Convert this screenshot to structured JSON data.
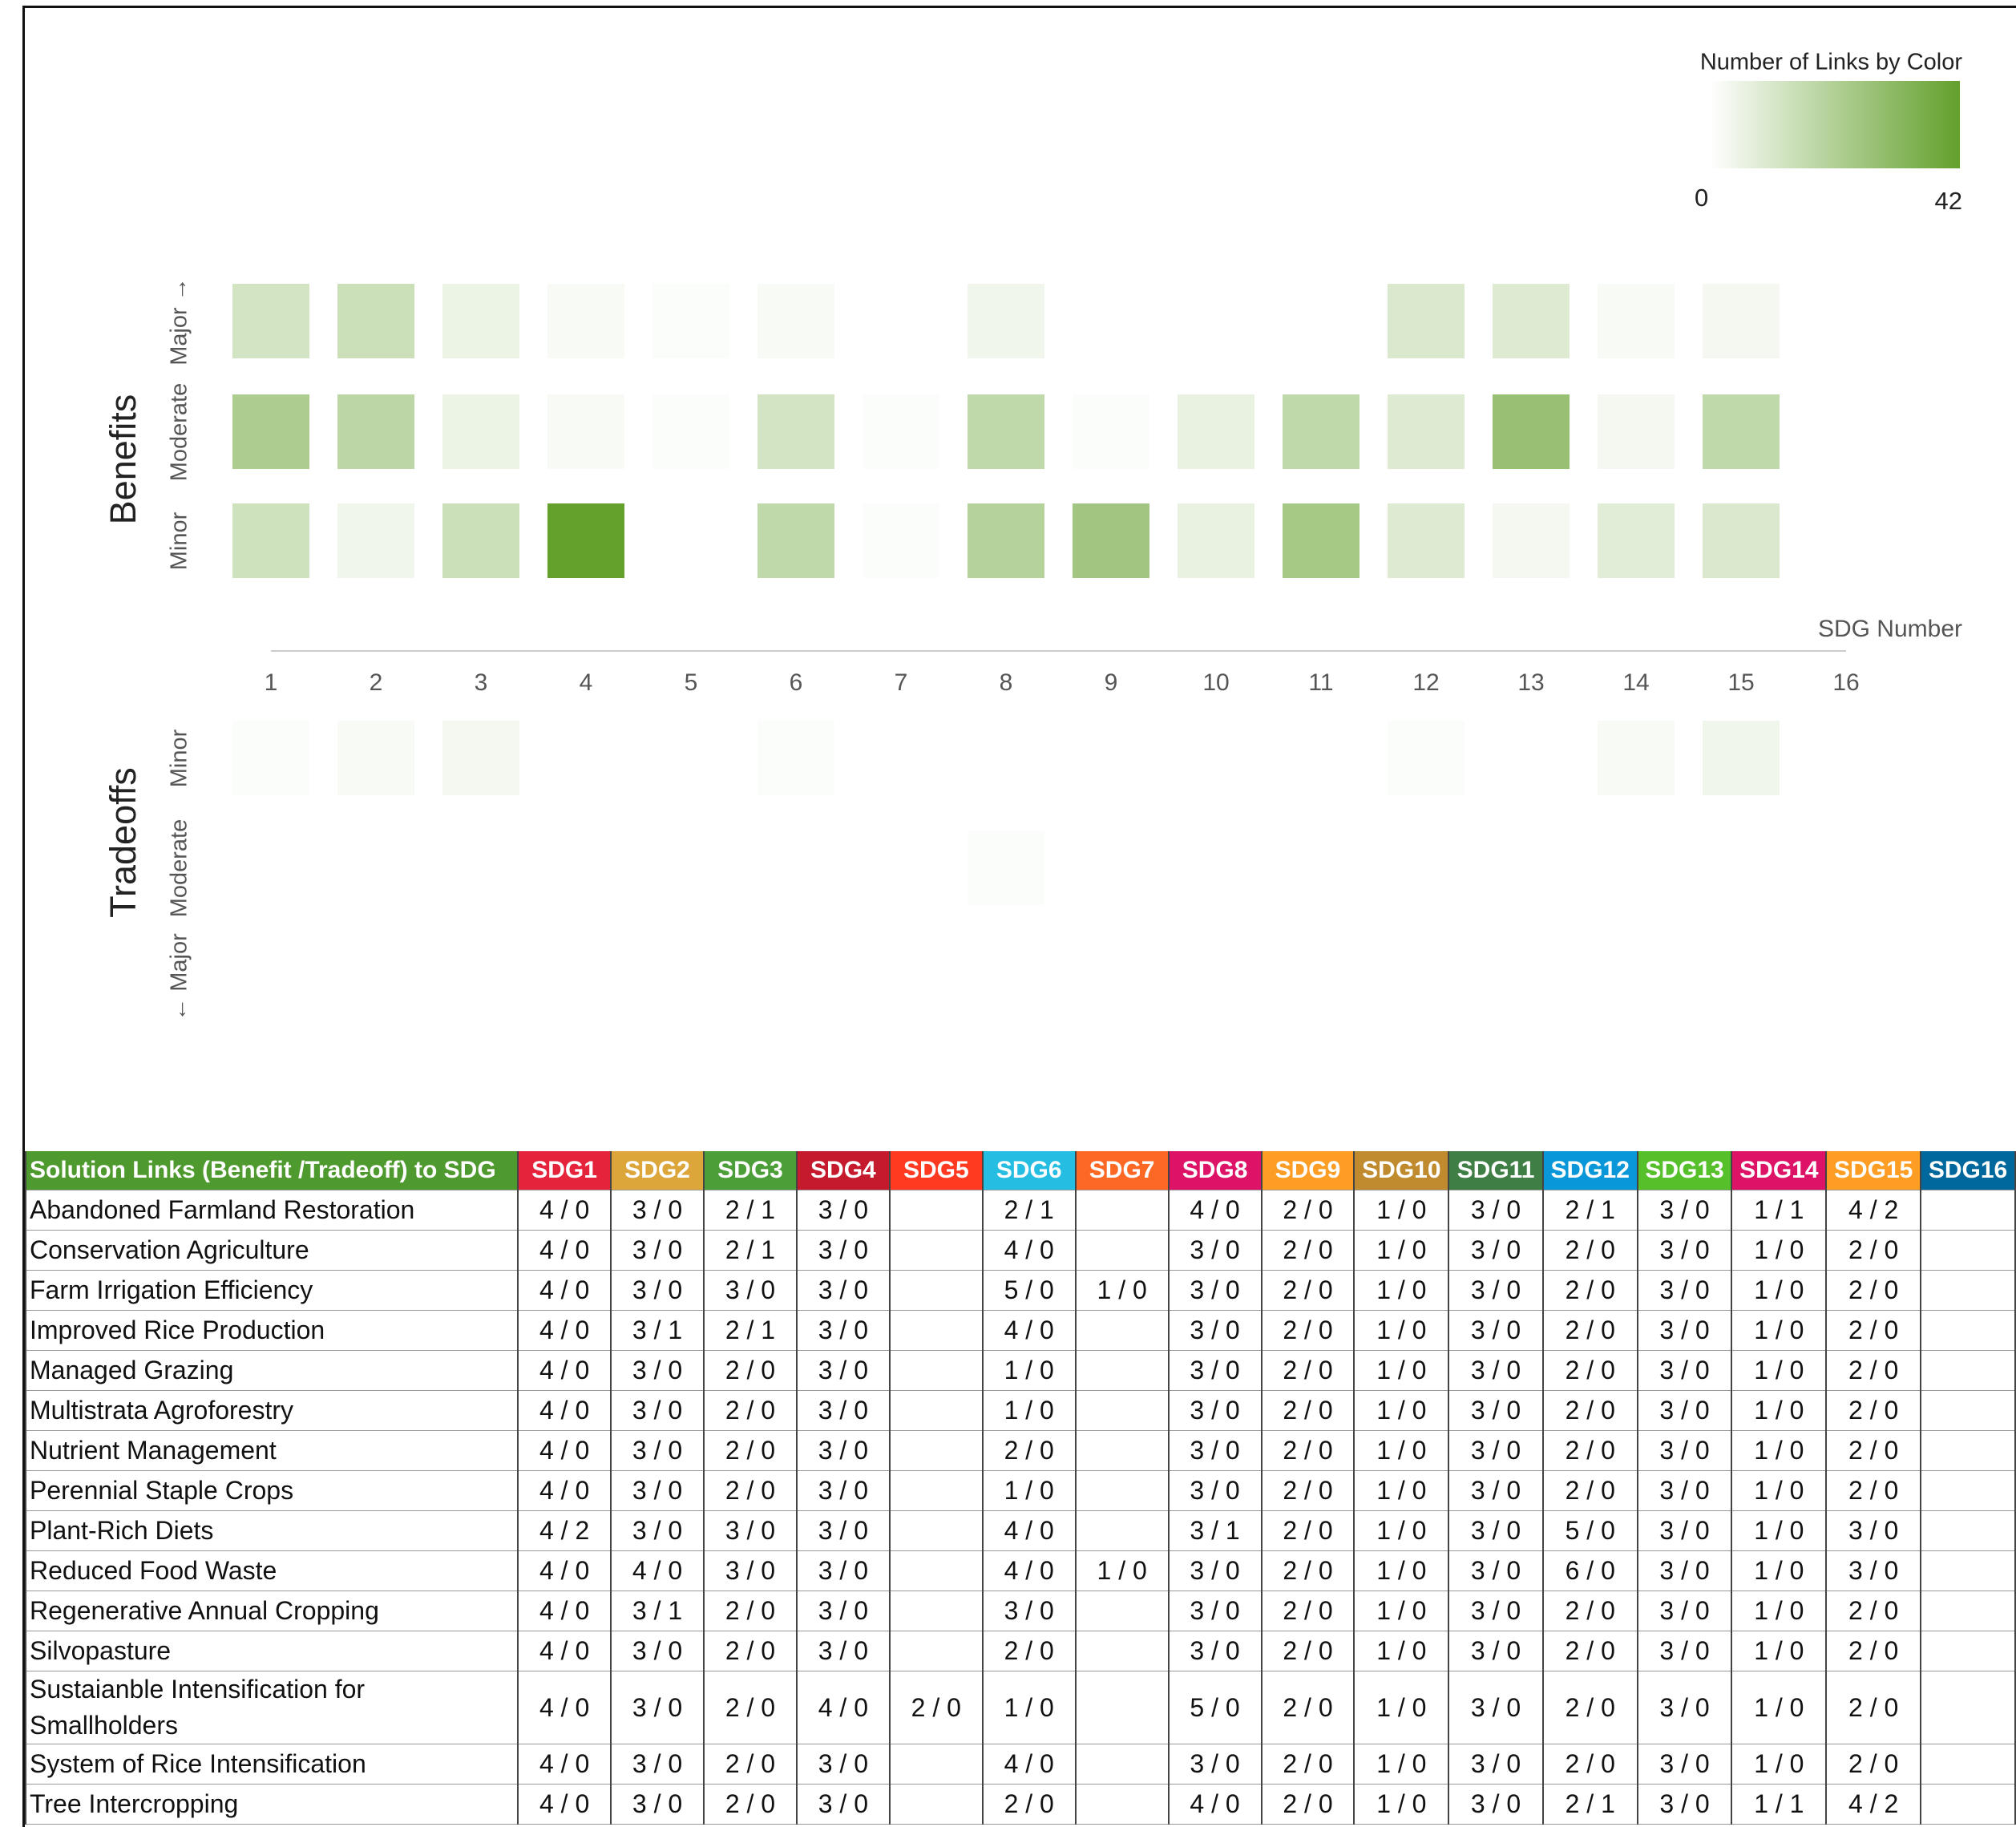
{
  "chart_data": {
    "type": "heatmap",
    "categories": [
      1,
      2,
      3,
      4,
      5,
      6,
      7,
      8,
      9,
      10,
      11,
      12,
      13,
      14,
      15,
      16
    ],
    "xlabel": "SDG Number",
    "clim": [
      0,
      42
    ],
    "colorscale": [
      "#ffffff",
      "#63a02c"
    ],
    "colorbar": {
      "title": "Number of Links by Color",
      "ticks": [
        0,
        42
      ]
    },
    "row_groups": [
      {
        "name": "Benefits",
        "rows": [
          {
            "label": "Major →",
            "values": [
              12,
              14,
              5,
              2,
              1,
              2,
              0,
              4,
              0,
              0,
              0,
              10,
              9,
              2,
              3,
              0
            ]
          },
          {
            "label": "Moderate",
            "values": [
              22,
              18,
              5,
              2,
              1,
              12,
              1,
              17,
              1,
              6,
              17,
              9,
              28,
              3,
              17,
              0
            ]
          },
          {
            "label": "Minor",
            "values": [
              13,
              4,
              14,
              42,
              0,
              17,
              1,
              20,
              25,
              6,
              24,
              9,
              3,
              8,
              10,
              0
            ]
          }
        ]
      },
      {
        "name": "Tradeoffs",
        "rows": [
          {
            "label": "Minor",
            "values": [
              1,
              2,
              3,
              0,
              0,
              1,
              0,
              0,
              0,
              0,
              0,
              1,
              0,
              2,
              4,
              0
            ]
          },
          {
            "label": "Moderate",
            "values": [
              0,
              0,
              0,
              0,
              0,
              0,
              0,
              1,
              0,
              0,
              0,
              0,
              0,
              0,
              0,
              0
            ]
          },
          {
            "label": "← Major",
            "values": [
              0,
              0,
              0,
              0,
              0,
              0,
              0,
              0,
              0,
              0,
              0,
              0,
              0,
              0,
              0,
              0
            ]
          }
        ]
      }
    ]
  },
  "table": {
    "header": [
      {
        "text": "Solution Links (Benefit /Tradeoff) to SDG",
        "color": "#4e9a2e"
      },
      {
        "text": "SDG1",
        "color": "#e5243b"
      },
      {
        "text": "SDG2",
        "color": "#dda63a"
      },
      {
        "text": "SDG3",
        "color": "#4c9f38"
      },
      {
        "text": "SDG4",
        "color": "#c5192d"
      },
      {
        "text": "SDG5",
        "color": "#ff3a21"
      },
      {
        "text": "SDG6",
        "color": "#26bde2"
      },
      {
        "text": "SDG7",
        "color": "#fd6925"
      },
      {
        "text": "SDG8",
        "color": "#dd1367"
      },
      {
        "text": "SDG9",
        "color": "#fd9d24"
      },
      {
        "text": "SDG10",
        "color": "#bf8b2e"
      },
      {
        "text": "SDG11",
        "color": "#3f7e44"
      },
      {
        "text": "SDG12",
        "color": "#0a97d9"
      },
      {
        "text": "SDG13",
        "color": "#56c02b"
      },
      {
        "text": "SDG14",
        "color": "#dd1367"
      },
      {
        "text": "SDG15",
        "color": "#fd9d24"
      },
      {
        "text": "SDG16",
        "color": "#00689d"
      }
    ],
    "rows": [
      [
        "Abandoned Farmland Restoration",
        "4 / 0",
        "3 / 0",
        "2 / 1",
        "3 / 0",
        null,
        "2 / 1",
        null,
        "4 / 0",
        "2 / 0",
        "1 / 0",
        "3 / 0",
        "2 / 1",
        "3 / 0",
        "1 / 1",
        "4 / 2",
        null
      ],
      [
        "Conservation Agriculture",
        "4 / 0",
        "3 / 0",
        "2 / 1",
        "3 / 0",
        null,
        "4 / 0",
        null,
        "3 / 0",
        "2 / 0",
        "1 / 0",
        "3 / 0",
        "2 / 0",
        "3 / 0",
        "1 / 0",
        "2 / 0",
        null
      ],
      [
        "Farm Irrigation Efficiency",
        "4 / 0",
        "3 / 0",
        "3 / 0",
        "3 / 0",
        null,
        "5 / 0",
        "1 / 0",
        "3 / 0",
        "2 / 0",
        "1 / 0",
        "3 / 0",
        "2 / 0",
        "3 / 0",
        "1 / 0",
        "2 / 0",
        null
      ],
      [
        "Improved Rice Production",
        "4 / 0",
        "3 / 1",
        "2 / 1",
        "3 / 0",
        null,
        "4 / 0",
        null,
        "3 / 0",
        "2 / 0",
        "1 / 0",
        "3 / 0",
        "2 / 0",
        "3 / 0",
        "1 / 0",
        "2 / 0",
        null
      ],
      [
        "Managed Grazing",
        "4 / 0",
        "3 / 0",
        "2 / 0",
        "3 / 0",
        null,
        "1 / 0",
        null,
        "3 / 0",
        "2 / 0",
        "1 / 0",
        "3 / 0",
        "2 / 0",
        "3 / 0",
        "1 / 0",
        "2 / 0",
        null
      ],
      [
        "Multistrata Agroforestry",
        "4 / 0",
        "3 / 0",
        "2 / 0",
        "3 / 0",
        null,
        "1 / 0",
        null,
        "3 / 0",
        "2 / 0",
        "1 / 0",
        "3 / 0",
        "2 / 0",
        "3 / 0",
        "1 / 0",
        "2 / 0",
        null
      ],
      [
        "Nutrient Management",
        "4 / 0",
        "3 / 0",
        "2 / 0",
        "3 / 0",
        null,
        "2 / 0",
        null,
        "3 / 0",
        "2 / 0",
        "1 / 0",
        "3 / 0",
        "2 / 0",
        "3 / 0",
        "1 / 0",
        "2 / 0",
        null
      ],
      [
        "Perennial Staple Crops",
        "4 / 0",
        "3 / 0",
        "2 / 0",
        "3 / 0",
        null,
        "1 / 0",
        null,
        "3 / 0",
        "2 / 0",
        "1 / 0",
        "3 / 0",
        "2 / 0",
        "3 / 0",
        "1 / 0",
        "2 / 0",
        null
      ],
      [
        "Plant-Rich Diets",
        "4 / 2",
        "3 / 0",
        "3 / 0",
        "3 / 0",
        null,
        "4 / 0",
        null,
        "3 / 1",
        "2 / 0",
        "1 / 0",
        "3 / 0",
        "5 / 0",
        "3 / 0",
        "1 / 0",
        "3 / 0",
        null
      ],
      [
        "Reduced Food Waste",
        "4 / 0",
        "4 / 0",
        "3 / 0",
        "3 / 0",
        null,
        "4 / 0",
        "1 / 0",
        "3 / 0",
        "2 / 0",
        "1 / 0",
        "3 / 0",
        "6 / 0",
        "3 / 0",
        "1 / 0",
        "3 / 0",
        null
      ],
      [
        "Regenerative Annual Cropping",
        "4 / 0",
        "3 / 1",
        "2 / 0",
        "3 / 0",
        null,
        "3 / 0",
        null,
        "3 / 0",
        "2 / 0",
        "1 / 0",
        "3 / 0",
        "2 / 0",
        "3 / 0",
        "1 / 0",
        "2 / 0",
        null
      ],
      [
        "Silvopasture",
        "4 / 0",
        "3 / 0",
        "2 / 0",
        "3 / 0",
        null,
        "2 / 0",
        null,
        "3 / 0",
        "2 / 0",
        "1 / 0",
        "3 / 0",
        "2 / 0",
        "3 / 0",
        "1 / 0",
        "2 / 0",
        null
      ],
      [
        "Sustaianble Intensification for Smallholders",
        "4 / 0",
        "3 / 0",
        "2 / 0",
        "4 / 0",
        "2 / 0",
        "1 / 0",
        null,
        "5 / 0",
        "2 / 0",
        "1 / 0",
        "3 / 0",
        "2 / 0",
        "3 / 0",
        "1 / 0",
        "2 / 0",
        null
      ],
      [
        "System of Rice Intensification",
        "4 / 0",
        "3 / 0",
        "2 / 0",
        "3 / 0",
        null,
        "4 / 0",
        null,
        "3 / 0",
        "2 / 0",
        "1 / 0",
        "3 / 0",
        "2 / 0",
        "3 / 0",
        "1 / 0",
        "2 / 0",
        null
      ],
      [
        "Tree Intercropping",
        "4 / 0",
        "3 / 0",
        "2 / 0",
        "3 / 0",
        null,
        "2 / 0",
        null,
        "4 / 0",
        "2 / 0",
        "1 / 0",
        "3 / 0",
        "2 / 1",
        "3 / 0",
        "1 / 1",
        "4 / 2",
        null
      ]
    ]
  }
}
